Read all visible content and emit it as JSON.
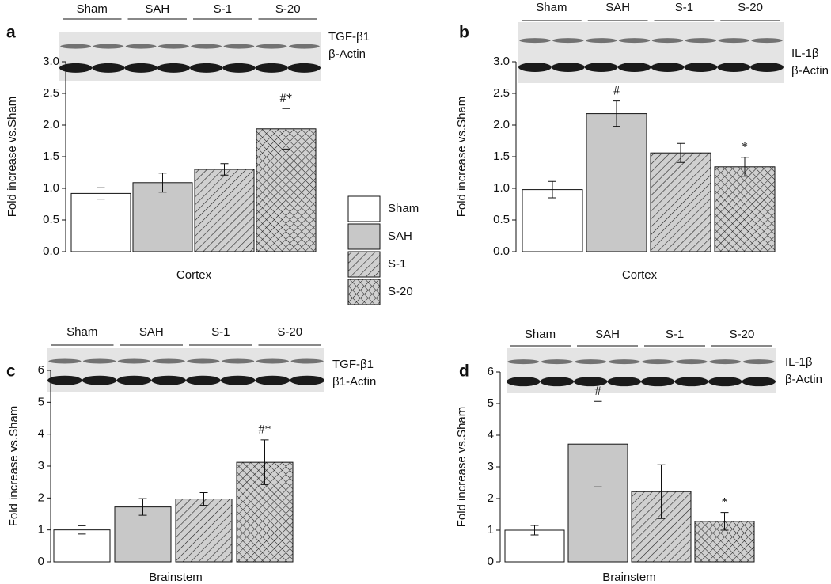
{
  "legend": {
    "items": [
      "Sham",
      "SAH",
      "S-1",
      "S-20"
    ],
    "colors": [
      "#ffffff",
      "#c8c8c8",
      "#d0d0d0",
      "#d0d0d0"
    ],
    "patterns": [
      "none",
      "none",
      "diagonal",
      "cross"
    ]
  },
  "chart_data": [
    {
      "type": "bar",
      "panel": "a",
      "categories": [
        "Sham",
        "SAH",
        "S-1",
        "S-20"
      ],
      "blot_bands": [
        "TGF-β1",
        "β-Actin"
      ],
      "values": [
        0.92,
        1.09,
        1.3,
        1.94
      ],
      "errors": [
        0.09,
        0.15,
        0.09,
        0.32
      ],
      "ylabel": "Fold increase vs.Sham",
      "xlabel": "Cortex",
      "ylim": [
        0,
        3
      ],
      "yticks": [
        {
          "value": 0,
          "label": "0.0"
        },
        0.5,
        {
          "value": 1,
          "label": "1.0"
        },
        1.5,
        {
          "value": 2,
          "label": "2.0"
        },
        2.5,
        {
          "value": 3,
          "label": "3.0"
        }
      ],
      "annotations": [
        {
          "index": 3,
          "text": "#*"
        }
      ]
    },
    {
      "type": "bar",
      "panel": "b",
      "categories": [
        "Sham",
        "SAH",
        "S-1",
        "S-20"
      ],
      "blot_bands": [
        "IL-1β",
        "β-Actin"
      ],
      "values": [
        0.98,
        2.18,
        1.56,
        1.34
      ],
      "errors": [
        0.13,
        0.2,
        0.15,
        0.15
      ],
      "ylabel": "Fold increase vs.Sham",
      "xlabel": "Cortex",
      "ylim": [
        0,
        3
      ],
      "yticks": [
        {
          "value": 0,
          "label": "0.0"
        },
        0.5,
        {
          "value": 1,
          "label": "1.0"
        },
        1.5,
        {
          "value": 2,
          "label": "2.0"
        },
        2.5,
        {
          "value": 3,
          "label": "3.0"
        }
      ],
      "annotations": [
        {
          "index": 1,
          "text": "#"
        },
        {
          "index": 3,
          "text": "*"
        }
      ]
    },
    {
      "type": "bar",
      "panel": "c",
      "categories": [
        "Sham",
        "SAH",
        "S-1",
        "S-20"
      ],
      "blot_bands": [
        "TGF-β1",
        "β1-Actin"
      ],
      "values": [
        1.0,
        1.72,
        1.97,
        3.12
      ],
      "errors": [
        0.13,
        0.26,
        0.2,
        0.7
      ],
      "ylabel": "Fold increase vs.Sham",
      "xlabel": "Brainstem",
      "ylim": [
        0,
        6
      ],
      "yticks": [
        0,
        1,
        2,
        3,
        4,
        5,
        6
      ],
      "annotations": [
        {
          "index": 3,
          "text": "#*"
        }
      ]
    },
    {
      "type": "bar",
      "panel": "d",
      "categories": [
        "Sham",
        "SAH",
        "S-1",
        "S-20"
      ],
      "blot_bands": [
        "IL-1β",
        "β-Actin"
      ],
      "values": [
        1.0,
        3.72,
        2.22,
        1.28
      ],
      "errors": [
        0.15,
        1.35,
        0.85,
        0.28
      ],
      "ylabel": "Fold increase vs.Sham",
      "xlabel": "Brainstem",
      "ylim": [
        0,
        6
      ],
      "yticks": [
        0,
        1,
        2,
        3,
        4,
        5,
        6
      ],
      "annotations": [
        {
          "index": 1,
          "text": "#"
        },
        {
          "index": 3,
          "text": "*"
        }
      ]
    }
  ]
}
